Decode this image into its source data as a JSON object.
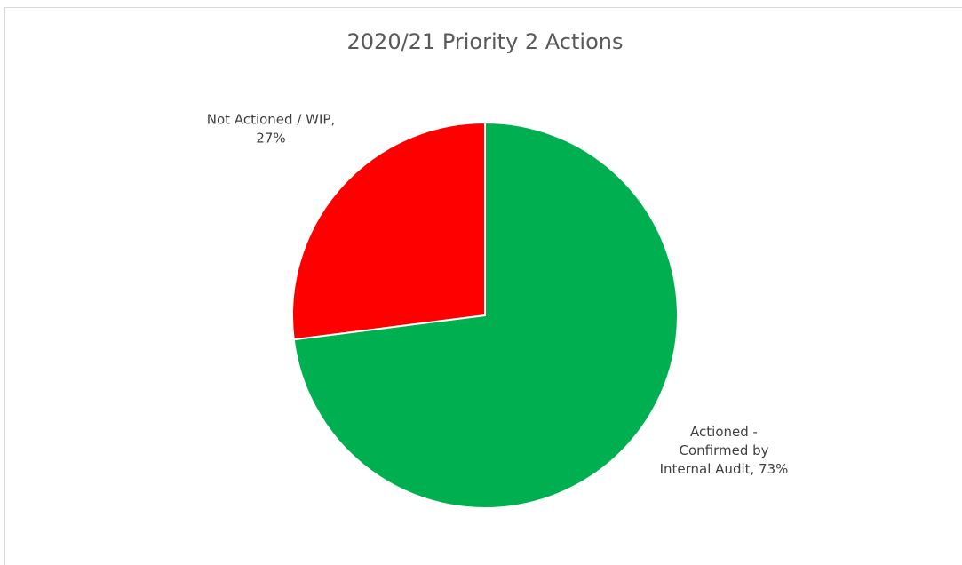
{
  "chart_data": {
    "type": "pie",
    "title": "2020/21 Priority 2 Actions",
    "values": [
      73,
      27
    ],
    "value_labels": [
      "Actioned - Confirmed by Internal Audit, 73%",
      "Not Actioned / WIP, 27%"
    ],
    "colors": [
      "#00b050",
      "#ff0000"
    ]
  }
}
